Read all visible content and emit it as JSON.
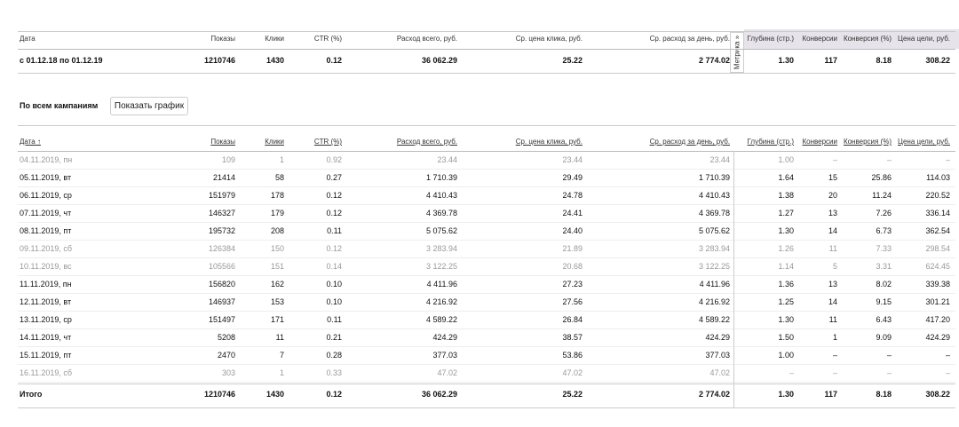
{
  "summary": {
    "header": [
      "Дата",
      "Показы",
      "Клики",
      "CTR (%)",
      "Расход всего, руб.",
      "Ср. цена клика, руб.",
      "Ср. расход за день, руб.",
      "Глубина (стр.)",
      "Конверсии",
      "Конверсия (%)",
      "Цена цели, руб."
    ],
    "metrika_tab": "Метрика »",
    "row": [
      "с 01.12.18 по 01.12.19",
      "1210746",
      "1430",
      "0.12",
      "36 062.29",
      "25.22",
      "2 774.02",
      "1.30",
      "117",
      "8.18",
      "308.22"
    ]
  },
  "section_title": "По всем кампаниям",
  "chart_button": "Показать график",
  "table": {
    "header": [
      "Дата ↑",
      "Показы",
      "Клики",
      "CTR (%)",
      "Расход всего, руб.",
      "Ср. цена клика, руб.",
      "Ср. расход за день, руб.",
      "Глубина (стр.)",
      "Конверсии",
      "Конверсия (%)",
      "Цена цели, руб."
    ],
    "rows": [
      {
        "muted": true,
        "cells": [
          "04.11.2019, пн",
          "109",
          "1",
          "0.92",
          "23.44",
          "23.44",
          "23.44",
          "1.00",
          "–",
          "–",
          "–"
        ]
      },
      {
        "muted": false,
        "cells": [
          "05.11.2019, вт",
          "21414",
          "58",
          "0.27",
          "1 710.39",
          "29.49",
          "1 710.39",
          "1.64",
          "15",
          "25.86",
          "114.03"
        ]
      },
      {
        "muted": false,
        "cells": [
          "06.11.2019, ср",
          "151979",
          "178",
          "0.12",
          "4 410.43",
          "24.78",
          "4 410.43",
          "1.38",
          "20",
          "11.24",
          "220.52"
        ]
      },
      {
        "muted": false,
        "cells": [
          "07.11.2019, чт",
          "146327",
          "179",
          "0.12",
          "4 369.78",
          "24.41",
          "4 369.78",
          "1.27",
          "13",
          "7.26",
          "336.14"
        ]
      },
      {
        "muted": false,
        "cells": [
          "08.11.2019, пт",
          "195732",
          "208",
          "0.11",
          "5 075.62",
          "24.40",
          "5 075.62",
          "1.30",
          "14",
          "6.73",
          "362.54"
        ]
      },
      {
        "muted": true,
        "cells": [
          "09.11.2019, сб",
          "126384",
          "150",
          "0.12",
          "3 283.94",
          "21.89",
          "3 283.94",
          "1.26",
          "11",
          "7.33",
          "298.54"
        ]
      },
      {
        "muted": true,
        "cells": [
          "10.11.2019, вс",
          "105566",
          "151",
          "0.14",
          "3 122.25",
          "20.68",
          "3 122.25",
          "1.14",
          "5",
          "3.31",
          "624.45"
        ]
      },
      {
        "muted": false,
        "cells": [
          "11.11.2019, пн",
          "156820",
          "162",
          "0.10",
          "4 411.96",
          "27.23",
          "4 411.96",
          "1.36",
          "13",
          "8.02",
          "339.38"
        ]
      },
      {
        "muted": false,
        "cells": [
          "12.11.2019, вт",
          "146937",
          "153",
          "0.10",
          "4 216.92",
          "27.56",
          "4 216.92",
          "1.25",
          "14",
          "9.15",
          "301.21"
        ]
      },
      {
        "muted": false,
        "cells": [
          "13.11.2019, ср",
          "151497",
          "171",
          "0.11",
          "4 589.22",
          "26.84",
          "4 589.22",
          "1.30",
          "11",
          "6.43",
          "417.20"
        ]
      },
      {
        "muted": false,
        "cells": [
          "14.11.2019, чт",
          "5208",
          "11",
          "0.21",
          "424.29",
          "38.57",
          "424.29",
          "1.50",
          "1",
          "9.09",
          "424.29"
        ]
      },
      {
        "muted": false,
        "cells": [
          "15.11.2019, пт",
          "2470",
          "7",
          "0.28",
          "377.03",
          "53.86",
          "377.03",
          "1.00",
          "–",
          "–",
          "–"
        ]
      },
      {
        "muted": true,
        "cells": [
          "16.11.2019, сб",
          "303",
          "1",
          "0.33",
          "47.02",
          "47.02",
          "47.02",
          "–",
          "–",
          "–",
          "–"
        ]
      }
    ],
    "total": [
      "Итого",
      "1210746",
      "1430",
      "0.12",
      "36 062.29",
      "25.22",
      "2 774.02",
      "1.30",
      "117",
      "8.18",
      "308.22"
    ]
  }
}
